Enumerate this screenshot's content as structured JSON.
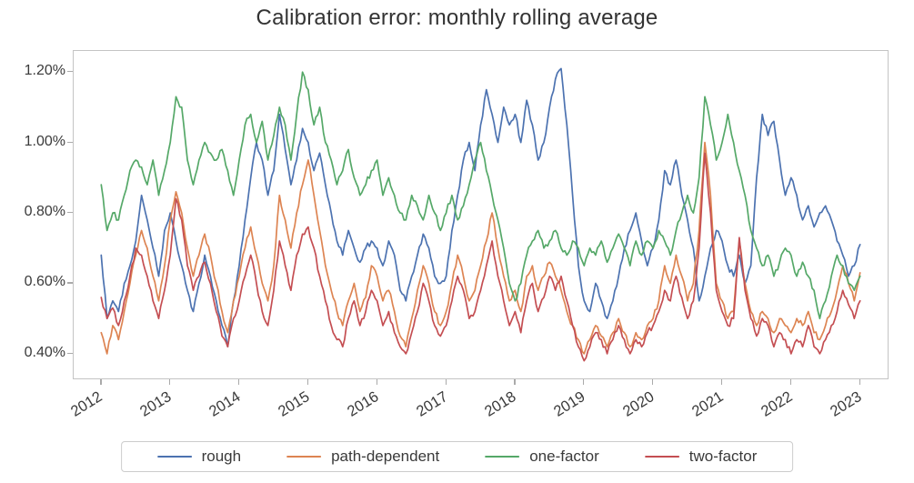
{
  "chart_data": {
    "type": "line",
    "title": "Calibration error: monthly rolling average",
    "xlabel": "",
    "ylabel": "",
    "grid": false,
    "plot_border_color": "#c4c4c4",
    "tick_label_color": "#3a3a3a",
    "xlim": [
      2011.6,
      2023.4
    ],
    "ylim": [
      0.33,
      1.26
    ],
    "y_ticks": {
      "values": [
        0.4,
        0.6,
        0.8,
        1.0,
        1.2
      ],
      "labels": [
        "0.40%",
        "0.60%",
        "0.80%",
        "1.00%",
        "1.20%"
      ]
    },
    "x_ticks": {
      "values": [
        2012,
        2013,
        2014,
        2015,
        2016,
        2017,
        2018,
        2019,
        2020,
        2021,
        2022,
        2023
      ],
      "labels": [
        "2012",
        "2013",
        "2014",
        "2015",
        "2016",
        "2017",
        "2018",
        "2019",
        "2020",
        "2021",
        "2022",
        "2023"
      ]
    },
    "x": {
      "start": 2012.0,
      "end": 2023.0,
      "points": 133,
      "interval": "monthly"
    },
    "legend": {
      "position": "bottom-center",
      "entries": [
        "rough",
        "path-dependent",
        "one-factor",
        "two-factor"
      ]
    },
    "series": [
      {
        "name": "rough",
        "color": "#4c72b0",
        "values": [
          0.68,
          0.5,
          0.55,
          0.52,
          0.6,
          0.65,
          0.72,
          0.85,
          0.78,
          0.7,
          0.62,
          0.75,
          0.8,
          0.72,
          0.65,
          0.58,
          0.52,
          0.6,
          0.68,
          0.62,
          0.55,
          0.48,
          0.42,
          0.55,
          0.65,
          0.78,
          0.9,
          1.0,
          0.95,
          0.85,
          0.92,
          1.08,
          0.98,
          0.88,
          0.95,
          1.04,
          1.0,
          0.92,
          0.97,
          0.88,
          0.8,
          0.72,
          0.68,
          0.75,
          0.7,
          0.66,
          0.7,
          0.72,
          0.7,
          0.65,
          0.72,
          0.68,
          0.58,
          0.55,
          0.62,
          0.68,
          0.74,
          0.7,
          0.62,
          0.6,
          0.62,
          0.75,
          0.85,
          0.95,
          1.0,
          0.92,
          1.05,
          1.15,
          1.08,
          1.0,
          1.1,
          1.05,
          1.08,
          1.0,
          1.12,
          1.05,
          0.95,
          1.0,
          1.1,
          1.18,
          1.21,
          1.05,
          0.85,
          0.65,
          0.55,
          0.52,
          0.6,
          0.55,
          0.5,
          0.55,
          0.62,
          0.7,
          0.75,
          0.8,
          0.72,
          0.65,
          0.7,
          0.78,
          0.92,
          0.88,
          0.95,
          0.85,
          0.78,
          0.7,
          0.55,
          0.62,
          0.7,
          0.75,
          0.72,
          0.65,
          0.62,
          0.68,
          0.6,
          0.65,
          0.9,
          1.08,
          1.02,
          1.06,
          0.95,
          0.85,
          0.9,
          0.85,
          0.78,
          0.82,
          0.76,
          0.8,
          0.82,
          0.78,
          0.72,
          0.68,
          0.62,
          0.65,
          0.71
        ]
      },
      {
        "name": "path-dependent",
        "color": "#dd8452",
        "values": [
          0.46,
          0.4,
          0.48,
          0.44,
          0.52,
          0.6,
          0.68,
          0.75,
          0.7,
          0.62,
          0.55,
          0.65,
          0.78,
          0.86,
          0.8,
          0.7,
          0.62,
          0.68,
          0.74,
          0.68,
          0.6,
          0.52,
          0.46,
          0.55,
          0.62,
          0.7,
          0.76,
          0.68,
          0.6,
          0.55,
          0.65,
          0.85,
          0.78,
          0.7,
          0.8,
          0.88,
          0.95,
          0.85,
          0.75,
          0.65,
          0.58,
          0.52,
          0.48,
          0.55,
          0.6,
          0.52,
          0.56,
          0.65,
          0.62,
          0.55,
          0.58,
          0.52,
          0.45,
          0.42,
          0.5,
          0.58,
          0.65,
          0.6,
          0.52,
          0.48,
          0.52,
          0.6,
          0.68,
          0.62,
          0.55,
          0.58,
          0.65,
          0.72,
          0.8,
          0.7,
          0.62,
          0.55,
          0.58,
          0.52,
          0.62,
          0.65,
          0.58,
          0.62,
          0.66,
          0.62,
          0.58,
          0.52,
          0.48,
          0.44,
          0.4,
          0.44,
          0.48,
          0.45,
          0.42,
          0.46,
          0.5,
          0.46,
          0.42,
          0.46,
          0.44,
          0.48,
          0.5,
          0.55,
          0.65,
          0.6,
          0.68,
          0.62,
          0.55,
          0.6,
          0.75,
          1.0,
          0.85,
          0.6,
          0.55,
          0.5,
          0.52,
          0.72,
          0.6,
          0.52,
          0.48,
          0.52,
          0.5,
          0.46,
          0.5,
          0.48,
          0.46,
          0.5,
          0.48,
          0.52,
          0.46,
          0.44,
          0.48,
          0.52,
          0.58,
          0.65,
          0.6,
          0.55,
          0.63
        ]
      },
      {
        "name": "one-factor",
        "color": "#55a868",
        "values": [
          0.88,
          0.75,
          0.8,
          0.78,
          0.85,
          0.92,
          0.95,
          0.93,
          0.88,
          0.95,
          0.85,
          0.92,
          1.0,
          1.13,
          1.1,
          0.95,
          0.88,
          0.95,
          1.0,
          0.97,
          0.95,
          0.98,
          0.92,
          0.85,
          0.95,
          1.05,
          1.08,
          1.0,
          1.06,
          0.95,
          1.02,
          1.1,
          1.05,
          0.95,
          1.08,
          1.2,
          1.15,
          1.05,
          1.1,
          1.0,
          0.95,
          0.88,
          0.92,
          0.98,
          0.9,
          0.85,
          0.88,
          0.92,
          0.95,
          0.85,
          0.9,
          0.85,
          0.8,
          0.78,
          0.85,
          0.82,
          0.78,
          0.85,
          0.8,
          0.75,
          0.8,
          0.85,
          0.78,
          0.82,
          0.88,
          0.95,
          1.0,
          0.92,
          0.85,
          0.78,
          0.7,
          0.6,
          0.55,
          0.6,
          0.68,
          0.72,
          0.75,
          0.7,
          0.72,
          0.75,
          0.7,
          0.68,
          0.72,
          0.7,
          0.65,
          0.7,
          0.68,
          0.72,
          0.66,
          0.7,
          0.74,
          0.7,
          0.65,
          0.72,
          0.68,
          0.72,
          0.7,
          0.75,
          0.72,
          0.68,
          0.75,
          0.8,
          0.85,
          0.8,
          0.9,
          1.13,
          1.05,
          0.95,
          1.0,
          1.08,
          1.0,
          0.92,
          0.85,
          0.75,
          0.7,
          0.65,
          0.68,
          0.62,
          0.66,
          0.7,
          0.68,
          0.62,
          0.66,
          0.62,
          0.58,
          0.5,
          0.55,
          0.62,
          0.68,
          0.65,
          0.6,
          0.58,
          0.62
        ]
      },
      {
        "name": "two-factor",
        "color": "#c44e52",
        "values": [
          0.56,
          0.5,
          0.53,
          0.48,
          0.55,
          0.62,
          0.7,
          0.68,
          0.62,
          0.55,
          0.5,
          0.58,
          0.68,
          0.84,
          0.78,
          0.65,
          0.58,
          0.62,
          0.66,
          0.6,
          0.52,
          0.45,
          0.42,
          0.5,
          0.55,
          0.62,
          0.68,
          0.6,
          0.52,
          0.48,
          0.58,
          0.72,
          0.65,
          0.58,
          0.68,
          0.74,
          0.76,
          0.7,
          0.62,
          0.55,
          0.48,
          0.44,
          0.42,
          0.5,
          0.55,
          0.48,
          0.52,
          0.58,
          0.55,
          0.48,
          0.52,
          0.46,
          0.42,
          0.4,
          0.46,
          0.52,
          0.6,
          0.55,
          0.48,
          0.45,
          0.48,
          0.55,
          0.62,
          0.58,
          0.5,
          0.52,
          0.58,
          0.65,
          0.72,
          0.62,
          0.55,
          0.48,
          0.52,
          0.46,
          0.55,
          0.6,
          0.52,
          0.56,
          0.62,
          0.58,
          0.62,
          0.55,
          0.48,
          0.42,
          0.38,
          0.42,
          0.46,
          0.44,
          0.4,
          0.44,
          0.48,
          0.44,
          0.4,
          0.44,
          0.42,
          0.46,
          0.48,
          0.52,
          0.58,
          0.55,
          0.62,
          0.56,
          0.5,
          0.55,
          0.7,
          0.97,
          0.8,
          0.58,
          0.52,
          0.48,
          0.5,
          0.73,
          0.58,
          0.5,
          0.45,
          0.5,
          0.48,
          0.42,
          0.46,
          0.44,
          0.4,
          0.44,
          0.42,
          0.48,
          0.42,
          0.4,
          0.44,
          0.48,
          0.52,
          0.58,
          0.54,
          0.5,
          0.55
        ]
      }
    ]
  }
}
